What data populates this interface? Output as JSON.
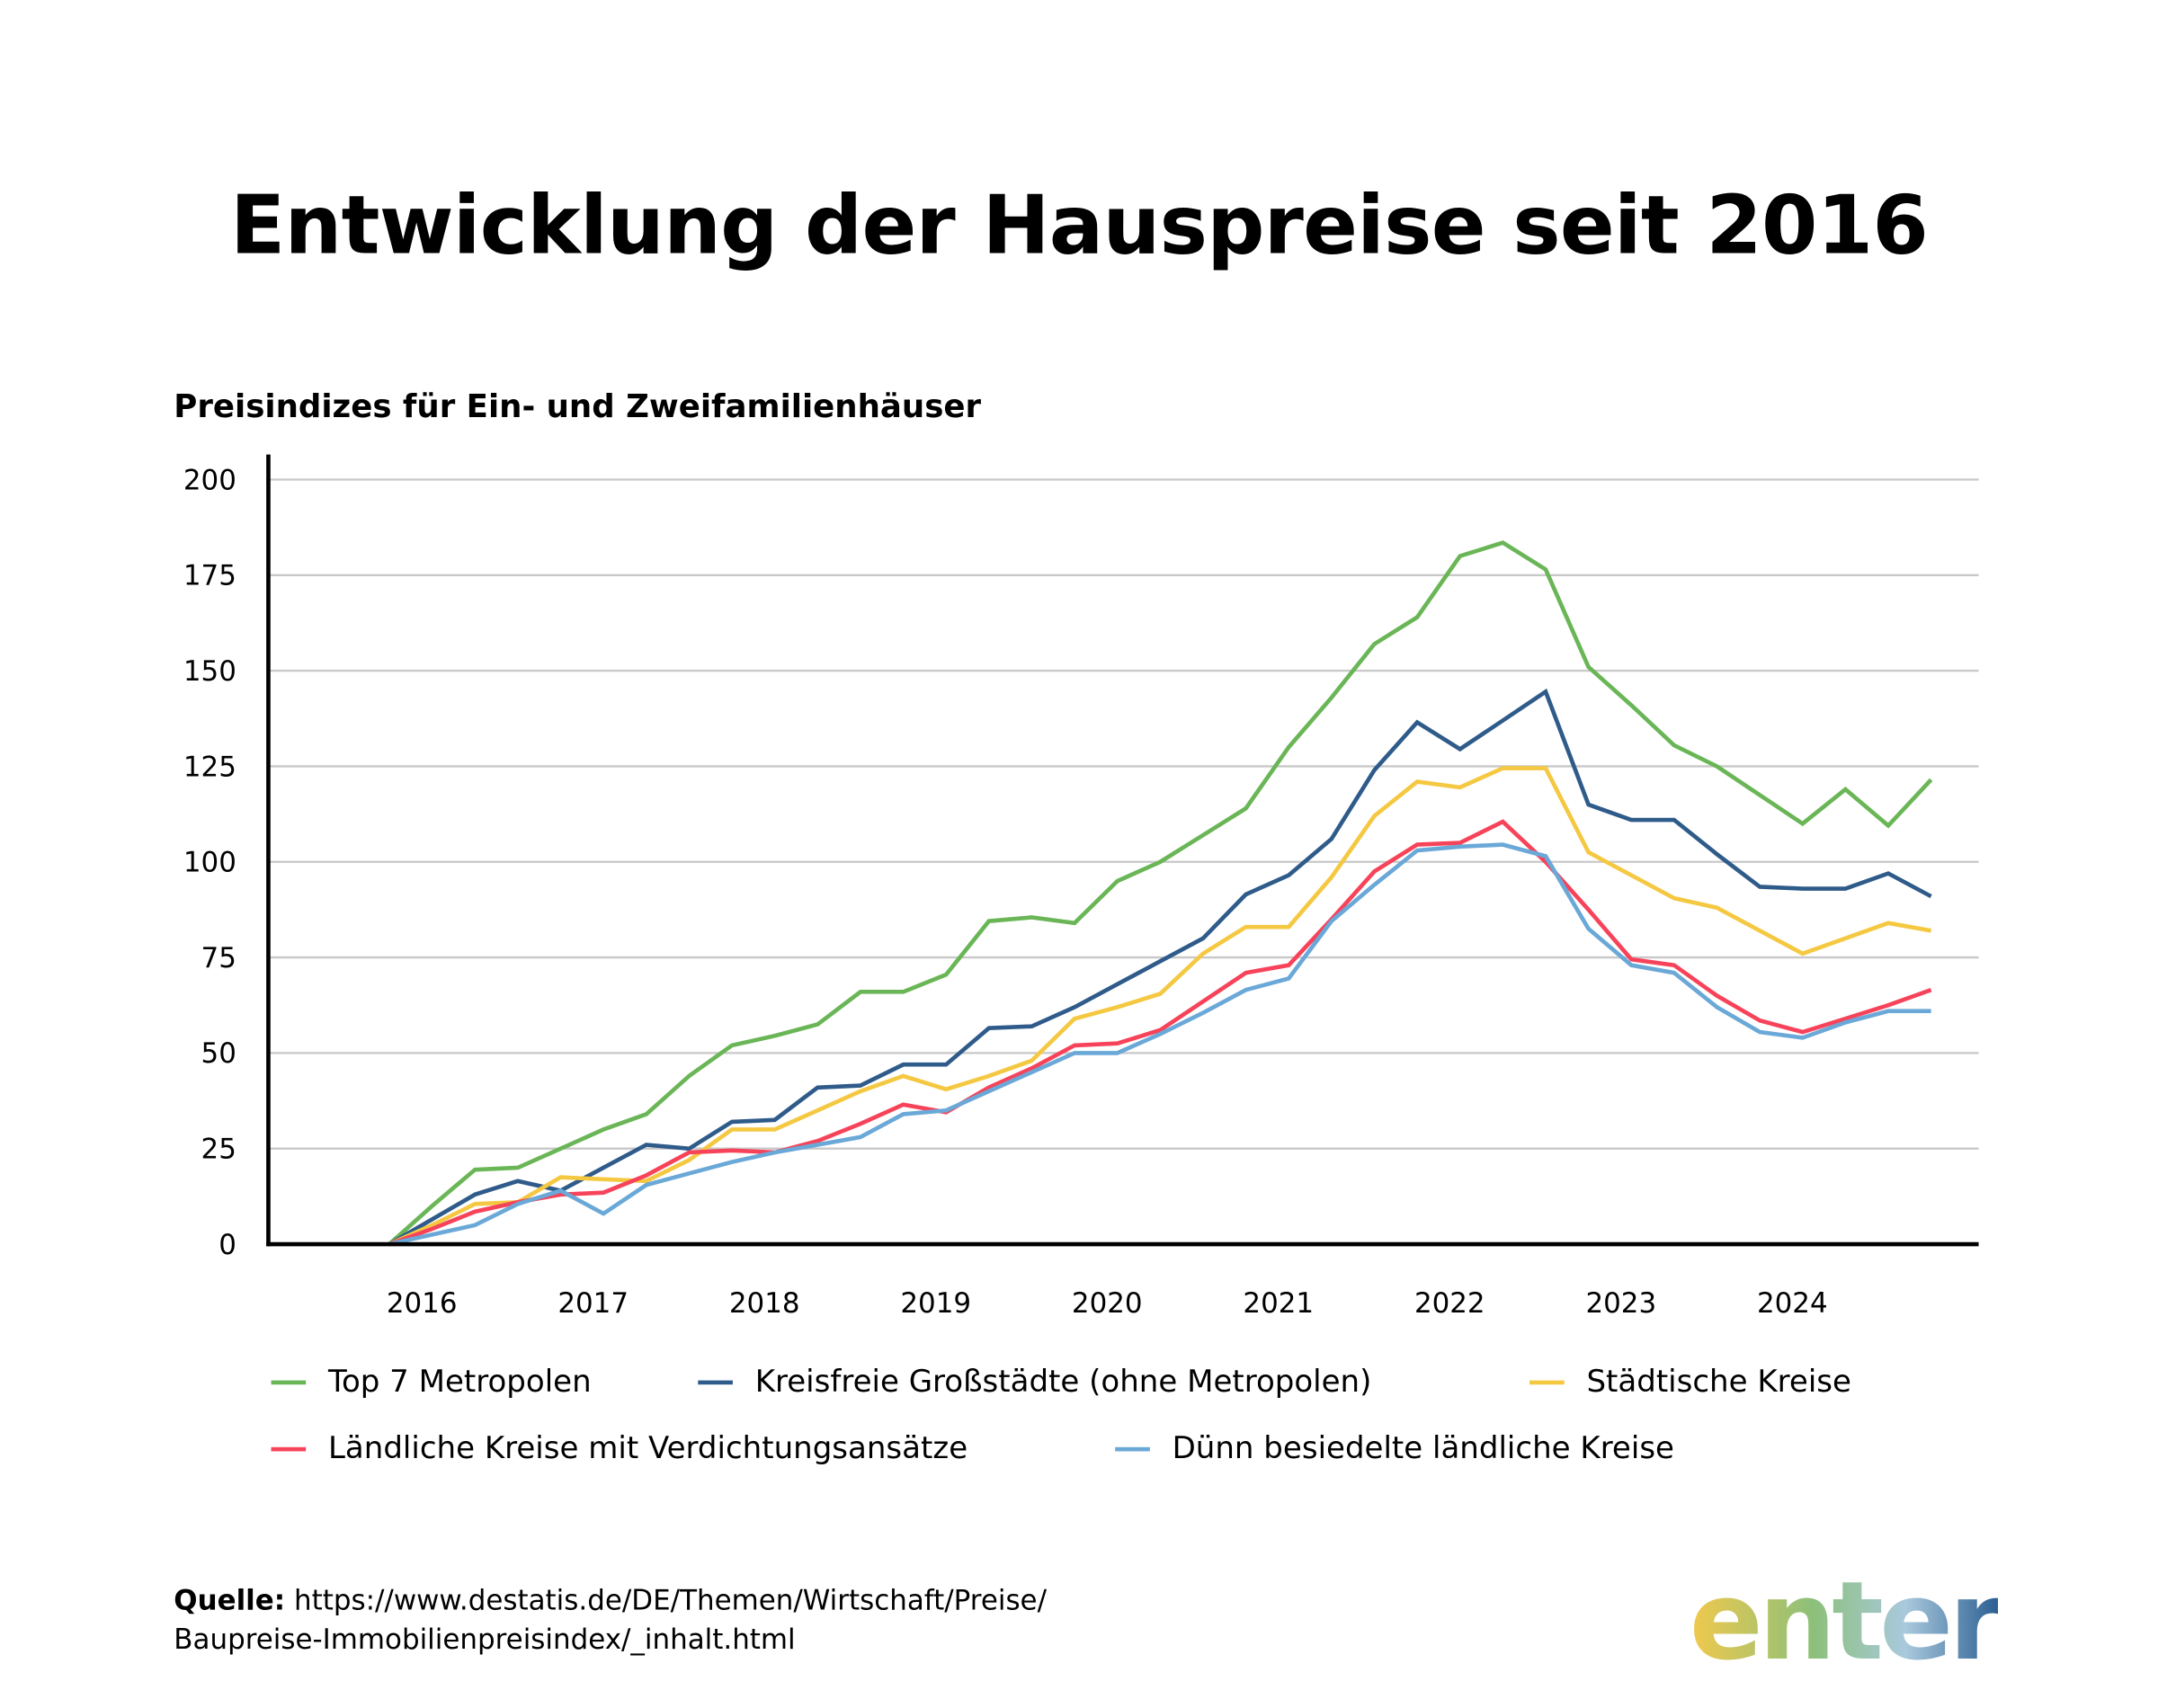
{
  "title": "Entwicklung der Hauspreise seit 2016",
  "subtitle": "Preisindizes für Ein- und Zweifamilienhäuser",
  "source_label": "Quelle:",
  "source_line1": "https://www.destatis.de/DE/Themen/Wirtschaft/Preise/",
  "source_line2": "Baupreise-Immobilienpreisindex/_inhalt.html",
  "logo_text": "enter",
  "chart_data": {
    "type": "line",
    "title": "Preisindizes für Ein- und Zweifamilienhäuser",
    "xlabel": "",
    "ylabel": "",
    "ylim": [
      0,
      200
    ],
    "yticks": [
      "0",
      "25",
      "50",
      "75",
      "100",
      "125",
      "150",
      "175",
      "200"
    ],
    "xticks": [
      "2016",
      "2017",
      "2018",
      "2019",
      "2020",
      "2021",
      "2022",
      "2023",
      "2024"
    ],
    "grid": true,
    "legend_position": "bottom",
    "x": [
      2015.875,
      2016.125,
      2016.375,
      2016.625,
      2016.875,
      2017.125,
      2017.375,
      2017.625,
      2017.875,
      2018.125,
      2018.375,
      2018.625,
      2018.875,
      2019.125,
      2019.375,
      2019.625,
      2019.875,
      2020.125,
      2020.375,
      2020.625,
      2020.875,
      2021.125,
      2021.375,
      2021.625,
      2021.875,
      2022.125,
      2022.375,
      2022.625,
      2022.875,
      2023.125,
      2023.375,
      2023.625,
      2023.875,
      2024.125,
      2024.375,
      2024.625,
      2024.875
    ],
    "series": [
      {
        "name": "Top 7 Metropolen",
        "color": "#6ab657",
        "values": [
          0,
          10,
          19.5,
          20,
          25,
          30,
          34,
          44,
          52,
          54.5,
          57.5,
          66,
          66,
          70.5,
          84.5,
          85.5,
          84,
          95,
          100,
          107,
          114,
          130,
          143,
          157,
          164,
          180,
          183.5,
          176.5,
          151,
          141,
          130.5,
          125,
          117.5,
          110,
          119,
          109.5,
          121.5
        ]
      },
      {
        "name": "Kreisfreie Großstädte (ohne Metropolen)",
        "color": "#2f5b8a",
        "values": [
          0,
          6.5,
          13,
          16.5,
          14,
          20,
          26,
          25,
          32,
          32.5,
          41,
          41.5,
          47,
          47,
          56.5,
          57,
          62,
          68,
          74,
          80,
          91.5,
          96.5,
          106,
          124,
          136.5,
          129.5,
          137,
          144.5,
          115,
          111,
          111,
          102,
          93.5,
          93,
          93,
          97,
          91
        ]
      },
      {
        "name": "Städtische Kreise",
        "color": "#f5c842",
        "values": [
          0,
          5,
          10.5,
          11,
          17.5,
          17,
          16.5,
          22,
          30,
          30,
          35,
          40,
          44,
          40.5,
          44,
          48,
          59,
          62,
          65.5,
          76,
          83,
          83,
          96,
          112,
          121,
          119.5,
          124.5,
          124.5,
          102.5,
          96.5,
          90.5,
          88,
          82,
          76,
          80,
          84,
          82
        ]
      },
      {
        "name": "Ländliche Kreise mit Verdichtungsansätze",
        "color": "#f7435a",
        "values": [
          0,
          4,
          8.5,
          11,
          13,
          13.5,
          18,
          24,
          24.5,
          24,
          27,
          31.5,
          36.5,
          34.5,
          41,
          46,
          52,
          52.5,
          56,
          63.5,
          71,
          73,
          85,
          97.5,
          104.5,
          105,
          110.5,
          100,
          87.5,
          74.5,
          73,
          65,
          58.5,
          55.5,
          59,
          62.5,
          66.5
        ]
      },
      {
        "name": "Dünn besiedelte ländliche Kreise",
        "color": "#6aa8d8",
        "values": [
          0,
          2.5,
          5,
          10.5,
          14,
          8,
          15.5,
          18.5,
          21.5,
          24,
          26,
          28,
          34,
          35,
          40,
          45,
          50,
          50,
          55,
          60.5,
          66.5,
          69.5,
          84.5,
          94,
          103,
          104,
          104.5,
          101.5,
          82.5,
          73,
          71,
          62,
          55.5,
          54,
          58,
          61,
          61
        ]
      }
    ]
  }
}
